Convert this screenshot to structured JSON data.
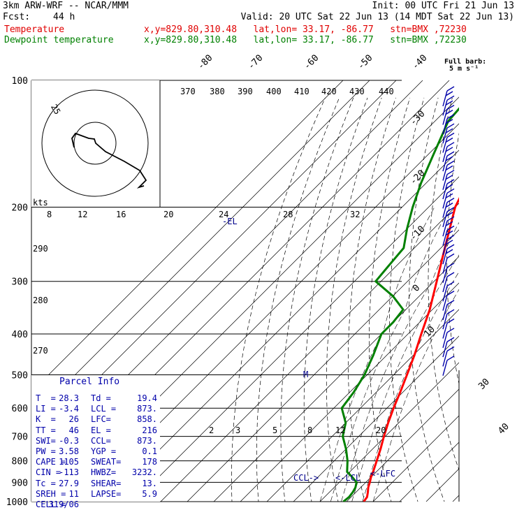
{
  "header": {
    "model": "3km ARW-WRF -- NCAR/MMM",
    "init": "Init: 00 UTC Fri 21 Jun 13",
    "fcst_label": "Fcst:",
    "fcst_value": "44 h",
    "valid": "Valid: 20 UTC Sat 22 Jun 13 (14 MDT Sat 22 Jun 13)",
    "temp_label": "Temperature",
    "temp_info": "x,y=829.80,310.48   lat,lon= 33.17, -86.77   stn=BMX ,72230",
    "dew_label": "Dewpoint temperature",
    "dew_info": "x,y=829.80,310.48   lat,lon= 33.17, -86.77   stn=BMX ,72230"
  },
  "colors": {
    "temperature": "#ff0000",
    "dewpoint": "#008000",
    "parcel_box": "#0000aa",
    "wind_barbs": "#0000aa"
  },
  "full_barb": {
    "line1": "Full barb:",
    "line2": "5 m s⁻¹"
  },
  "hodograph": {
    "units": "kts",
    "ring_label": "25"
  },
  "chart_data": {
    "type": "skew-t",
    "pressure_levels": [
      "100",
      "200",
      "300",
      "400",
      "500",
      "600",
      "700",
      "800",
      "900",
      "1000"
    ],
    "isotherm_labels_top": [
      "-80",
      "-70",
      "-60",
      "-50",
      "-40"
    ],
    "isotherm_labels_right": [
      "-30",
      "-20",
      "-10",
      "0",
      "10",
      "30",
      "40"
    ],
    "theta_labels": [
      "370",
      "380",
      "390",
      "400",
      "410",
      "420",
      "430",
      "440"
    ],
    "mixing_ratio_labels": [
      "8",
      "12",
      "16",
      "20",
      "24",
      "28",
      "32"
    ],
    "theta_left_labels": [
      "290",
      "280",
      "270"
    ],
    "lower_mixing_labels": [
      "2",
      "3",
      "5",
      "8",
      "12",
      "20"
    ],
    "level_markers": [
      "-EL",
      "M",
      "CCL->",
      "<-LCL",
      "<-LFC"
    ],
    "temperature_profile": [
      {
        "p": 1000,
        "t": 26.5
      },
      {
        "p": 975,
        "t": 26.0
      },
      {
        "p": 950,
        "t": 24.5
      },
      {
        "p": 925,
        "t": 22.8
      },
      {
        "p": 900,
        "t": 21.5
      },
      {
        "p": 875,
        "t": 20.0
      },
      {
        "p": 850,
        "t": 18.8
      },
      {
        "p": 800,
        "t": 16.0
      },
      {
        "p": 750,
        "t": 13.0
      },
      {
        "p": 700,
        "t": 9.5
      },
      {
        "p": 650,
        "t": 6.0
      },
      {
        "p": 600,
        "t": 2.5
      },
      {
        "p": 550,
        "t": -1.0
      },
      {
        "p": 500,
        "t": -5.0
      },
      {
        "p": 450,
        "t": -9.5
      },
      {
        "p": 400,
        "t": -15.0
      },
      {
        "p": 350,
        "t": -21.0
      },
      {
        "p": 300,
        "t": -29.0
      },
      {
        "p": 250,
        "t": -38.5
      },
      {
        "p": 200,
        "t": -50.0
      },
      {
        "p": 150,
        "t": -60.0
      },
      {
        "p": 125,
        "t": -63.0
      },
      {
        "p": 100,
        "t": -65.0
      }
    ],
    "dewpoint_profile": [
      {
        "p": 1000,
        "t": 18.8
      },
      {
        "p": 975,
        "t": 19.2
      },
      {
        "p": 950,
        "t": 18.8
      },
      {
        "p": 925,
        "t": 18.0
      },
      {
        "p": 900,
        "t": 16.5
      },
      {
        "p": 875,
        "t": 13.0
      },
      {
        "p": 850,
        "t": 9.0
      },
      {
        "p": 800,
        "t": 5.0
      },
      {
        "p": 750,
        "t": 0.0
      },
      {
        "p": 700,
        "t": -6.0
      },
      {
        "p": 650,
        "t": -10.0
      },
      {
        "p": 600,
        "t": -17.0
      },
      {
        "p": 550,
        "t": -18.5
      },
      {
        "p": 500,
        "t": -21.0
      },
      {
        "p": 450,
        "t": -25.0
      },
      {
        "p": 400,
        "t": -30.0
      },
      {
        "p": 375,
        "t": -30.0
      },
      {
        "p": 350,
        "t": -31.0
      },
      {
        "p": 325,
        "t": -40.0
      },
      {
        "p": 300,
        "t": -52.0
      },
      {
        "p": 275,
        "t": -53.0
      },
      {
        "p": 250,
        "t": -54.0
      },
      {
        "p": 225,
        "t": -60.0
      },
      {
        "p": 200,
        "t": -66.0
      },
      {
        "p": 175,
        "t": -72.0
      },
      {
        "p": 150,
        "t": -78.0
      },
      {
        "p": 125,
        "t": -85.0
      },
      {
        "p": 100,
        "t": -87.0
      }
    ]
  },
  "parcel_info": {
    "title": "Parcel Info",
    "rows": [
      [
        "T  =",
        "28.3",
        "Td =",
        "19.4"
      ],
      [
        "LI =",
        "-3.4",
        "LCL =",
        "873."
      ],
      [
        "K  =",
        "26",
        "LFC=",
        "858."
      ],
      [
        "TT =",
        "46",
        "EL =",
        "216"
      ],
      [
        "SWI=",
        "-0.3",
        "CCL=",
        "873."
      ],
      [
        "PW =",
        "3.58",
        "YGP =",
        "0.1"
      ],
      [
        "CAPE =",
        "1105",
        "SWEAT=",
        "178"
      ],
      [
        "CIN =",
        "-113",
        "HWBZ=",
        "3232."
      ],
      [
        "Tc =",
        "27.9",
        "SHEAR=",
        "13."
      ],
      [
        "SREH =",
        "11",
        "LAPSE=",
        "5.9"
      ],
      [
        "CELL =",
        "319/06",
        "",
        ""
      ]
    ]
  }
}
